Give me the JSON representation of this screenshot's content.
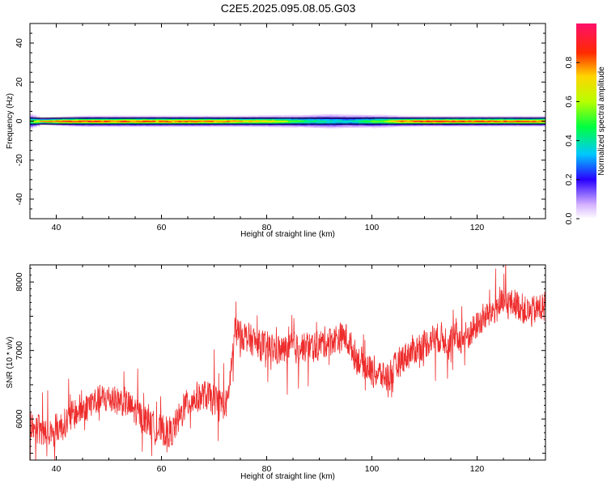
{
  "title": "C2E5.2025.095.08.05.G03",
  "chart_data": [
    {
      "type": "heatmap",
      "xlabel": "Height of straight line (km)",
      "ylabel": "Frequency (Hz)",
      "xlim": [
        35,
        133
      ],
      "ylim": [
        -50,
        50
      ],
      "x_ticks": [
        40,
        60,
        80,
        100,
        120
      ],
      "y_ticks": [
        -40,
        -20,
        0,
        20,
        40
      ],
      "colorbar": {
        "label": "Normalized spectral amplitude",
        "range": [
          0.0,
          1.0
        ],
        "ticks": [
          0.0,
          0.2,
          0.4,
          0.6,
          0.8
        ]
      },
      "band": {
        "center_frequency": 0,
        "x": [
          35,
          37,
          40,
          45,
          50,
          55,
          60,
          65,
          70,
          75,
          80,
          85,
          88,
          92,
          95,
          98,
          102,
          105,
          110,
          115,
          120,
          125,
          130,
          133
        ],
        "peak_amplitude": [
          0.55,
          0.8,
          0.88,
          0.87,
          0.86,
          0.85,
          0.84,
          0.83,
          0.8,
          0.76,
          0.7,
          0.55,
          0.45,
          0.4,
          0.38,
          0.45,
          0.6,
          0.8,
          0.9,
          0.9,
          0.88,
          0.87,
          0.86,
          0.85
        ],
        "halfwidth_hz": [
          4,
          2,
          2.5,
          3,
          3,
          3,
          3,
          3,
          3,
          3,
          3.2,
          3.5,
          4,
          4.5,
          4.2,
          4,
          3.5,
          3,
          2.8,
          2.8,
          2.8,
          2.8,
          2.8,
          2.8
        ]
      },
      "reference_lines_hz": [
        -1.5,
        1.5
      ]
    },
    {
      "type": "line",
      "xlabel": "Height of straight line (km)",
      "ylabel": "SNR (10 * v/v)",
      "xlim": [
        35,
        133
      ],
      "ylim": [
        5400,
        8250
      ],
      "x_ticks": [
        40,
        60,
        80,
        100,
        120
      ],
      "y_ticks": [
        6000,
        7000,
        8000
      ],
      "series": [
        {
          "color": "#ee2c2c",
          "x": [
            35,
            38,
            41,
            44,
            47,
            50,
            53,
            56,
            59,
            62,
            65,
            68,
            71,
            72.5,
            74,
            77,
            80,
            83,
            86,
            89,
            92,
            95,
            97,
            100,
            103,
            106,
            109,
            112,
            115,
            118,
            121,
            124,
            127,
            130,
            133
          ],
          "y": [
            5900,
            5800,
            5900,
            6100,
            6250,
            6300,
            6250,
            6050,
            5850,
            5800,
            6250,
            6350,
            6250,
            6200,
            7300,
            7150,
            7050,
            7000,
            7050,
            7050,
            7150,
            7200,
            6900,
            6700,
            6600,
            6900,
            7050,
            7200,
            7150,
            7200,
            7450,
            7650,
            7700,
            7550,
            7650
          ],
          "noise_amplitude": 220
        }
      ]
    }
  ]
}
